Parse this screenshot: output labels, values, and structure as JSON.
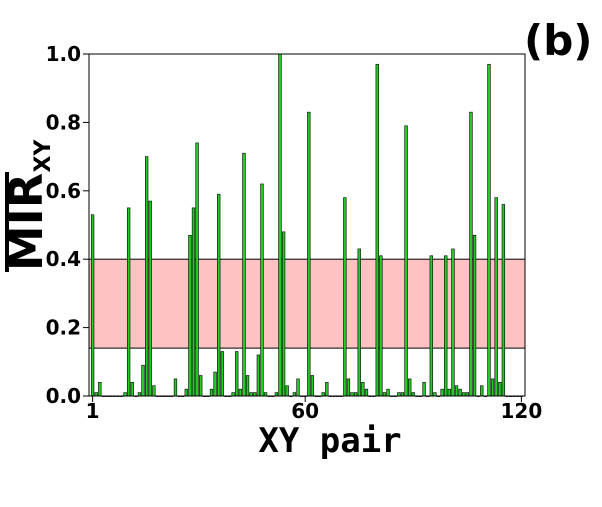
{
  "panel_label": "(b)",
  "chart_data": {
    "type": "bar",
    "xlabel": "XY pair",
    "ylabel_main": "MIR",
    "ylabel_sub": "XY",
    "xlim": [
      0,
      121
    ],
    "ylim": [
      0,
      1.0
    ],
    "x_ticks": [
      1,
      60,
      120
    ],
    "y_ticks": [
      "0.0",
      "0.2",
      "0.4",
      "0.6",
      "0.8",
      "1.0"
    ],
    "band": {
      "from": 0.14,
      "to": 0.4,
      "color": "#ffc2c2"
    },
    "bar_color": "#22cc22",
    "values": [
      0.53,
      0.01,
      0.04,
      0,
      0,
      0,
      0,
      0,
      0,
      0.01,
      0.55,
      0.04,
      0,
      0.01,
      0.09,
      0.7,
      0.57,
      0.03,
      0,
      0,
      0,
      0,
      0,
      0.05,
      0,
      0,
      0.02,
      0.47,
      0.55,
      0.74,
      0.06,
      0,
      0,
      0.02,
      0.07,
      0.59,
      0.13,
      0,
      0,
      0.01,
      0.13,
      0.02,
      0.71,
      0.06,
      0.01,
      0.01,
      0.12,
      0.62,
      0.01,
      0,
      0,
      0.01,
      1.0,
      0.48,
      0.03,
      0,
      0.01,
      0.05,
      0,
      0,
      0.83,
      0.06,
      0,
      0,
      0.01,
      0.04,
      0,
      0,
      0,
      0,
      0.58,
      0.05,
      0.01,
      0.01,
      0.43,
      0.04,
      0.02,
      0,
      0,
      0.97,
      0.41,
      0.01,
      0.02,
      0,
      0,
      0.01,
      0.01,
      0.79,
      0.05,
      0.01,
      0,
      0,
      0.04,
      0,
      0.41,
      0.01,
      0,
      0.02,
      0.41,
      0.02,
      0.43,
      0.03,
      0.02,
      0.01,
      0.01,
      0.83,
      0.47,
      0,
      0.03,
      0,
      0.97,
      0.05,
      0.58,
      0.04,
      0.56,
      0,
      0,
      0,
      0,
      0
    ]
  }
}
